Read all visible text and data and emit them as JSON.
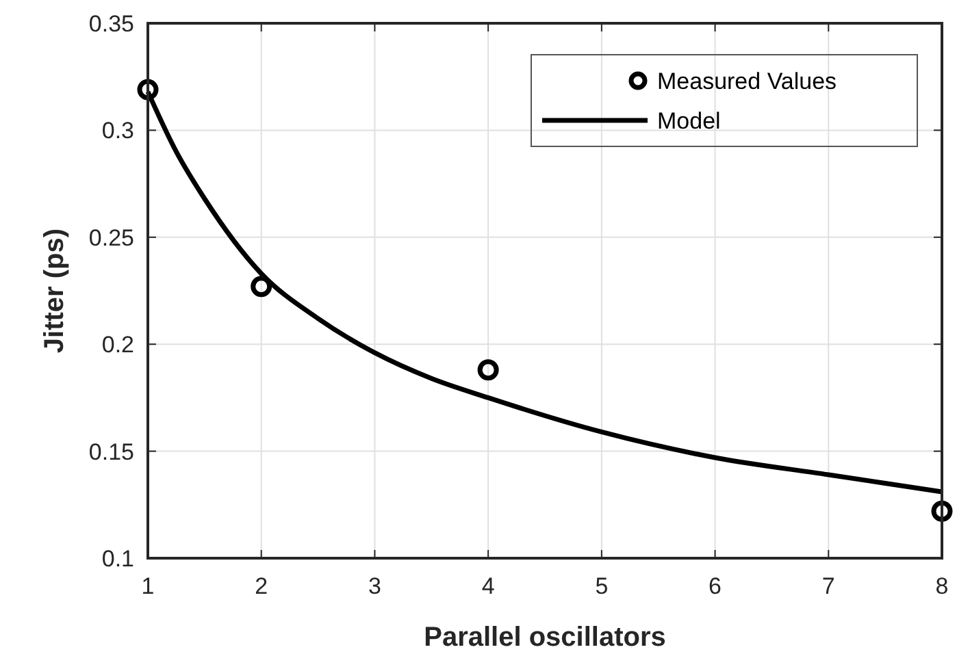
{
  "chart_data": {
    "type": "scatter",
    "xlabel": "Parallel oscillators",
    "ylabel": "Jitter (ps)",
    "xlim": [
      1,
      8
    ],
    "xticks": [
      1,
      2,
      3,
      4,
      5,
      6,
      7,
      8
    ],
    "ylim": [
      0.1,
      0.35
    ],
    "yticks": [
      0.1,
      0.15,
      0.2,
      0.25,
      0.3,
      0.35
    ],
    "grid": true,
    "legend": "top right",
    "series": [
      {
        "name": "Measured Values",
        "marker": "circle",
        "color": "#000000",
        "x": [
          1,
          2,
          4,
          8
        ],
        "values": [
          0.319,
          0.227,
          0.188,
          0.122
        ]
      },
      {
        "name": "Model",
        "type": "line",
        "marker": "none",
        "line_style": "solid",
        "color": "#000000",
        "x": [
          1,
          1.25,
          1.5,
          2,
          2.5,
          3,
          3.5,
          4,
          5,
          6,
          7,
          8
        ],
        "values": [
          0.318,
          0.29,
          0.268,
          0.233,
          0.212,
          0.196,
          0.184,
          0.175,
          0.159,
          0.147,
          0.139,
          0.131
        ]
      }
    ]
  }
}
